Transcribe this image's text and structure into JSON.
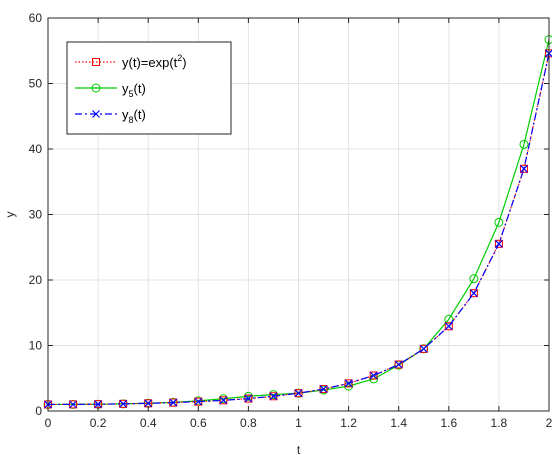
{
  "chart_data": {
    "type": "line",
    "xlabel": "t",
    "ylabel": "y",
    "xlim": [
      0,
      2
    ],
    "ylim": [
      0,
      60
    ],
    "xticks": [
      0,
      0.2,
      0.4,
      0.6,
      0.8,
      1,
      1.2,
      1.4,
      1.6,
      1.8,
      2
    ],
    "xtick_labels": [
      "0",
      "0.2",
      "0.4",
      "0.6",
      "0.8",
      "1",
      "1.2",
      "1.4",
      "1.6",
      "1.8",
      "2"
    ],
    "yticks": [
      0,
      10,
      20,
      30,
      40,
      50,
      60
    ],
    "ytick_labels": [
      "0",
      "10",
      "20",
      "30",
      "40",
      "50",
      "60"
    ],
    "grid": true,
    "legend_position": "top-left",
    "x": [
      0,
      0.1,
      0.2,
      0.3,
      0.4,
      0.5,
      0.6,
      0.7,
      0.8,
      0.9,
      1.0,
      1.1,
      1.2,
      1.3,
      1.4,
      1.5,
      1.6,
      1.7,
      1.8,
      1.9,
      2.0
    ],
    "series": [
      {
        "name": "y(t)=exp(t²)",
        "legend_main": "y(t)=exp(t",
        "legend_sup": "2",
        "legend_tail": ")",
        "color": "#ff0000",
        "line": "dotted",
        "marker": "square",
        "values": [
          1.0,
          1.01,
          1.04,
          1.094,
          1.174,
          1.284,
          1.433,
          1.632,
          1.896,
          2.248,
          2.718,
          3.353,
          4.221,
          5.419,
          7.099,
          9.488,
          12.94,
          17.99,
          25.53,
          36.97,
          54.6
        ]
      },
      {
        "name": "y5(t)",
        "legend_main": "y",
        "legend_sub": "5",
        "legend_tail": "(t)",
        "color": "#00cc00",
        "line": "solid",
        "marker": "circle",
        "values": [
          1.0,
          1.01,
          1.04,
          1.09,
          1.18,
          1.33,
          1.55,
          1.87,
          2.25,
          2.5,
          2.72,
          3.2,
          3.8,
          4.9,
          7.0,
          9.5,
          14.0,
          20.2,
          28.8,
          40.7,
          56.7
        ]
      },
      {
        "name": "y8(t)",
        "legend_main": "y",
        "legend_sub": "8",
        "legend_tail": "(t)",
        "color": "#0000ff",
        "line": "dashdot",
        "marker": "x",
        "values": [
          1.0,
          1.01,
          1.04,
          1.094,
          1.174,
          1.284,
          1.433,
          1.632,
          1.896,
          2.248,
          2.718,
          3.353,
          4.221,
          5.419,
          7.099,
          9.488,
          12.94,
          17.99,
          25.53,
          36.97,
          54.6
        ]
      }
    ]
  }
}
